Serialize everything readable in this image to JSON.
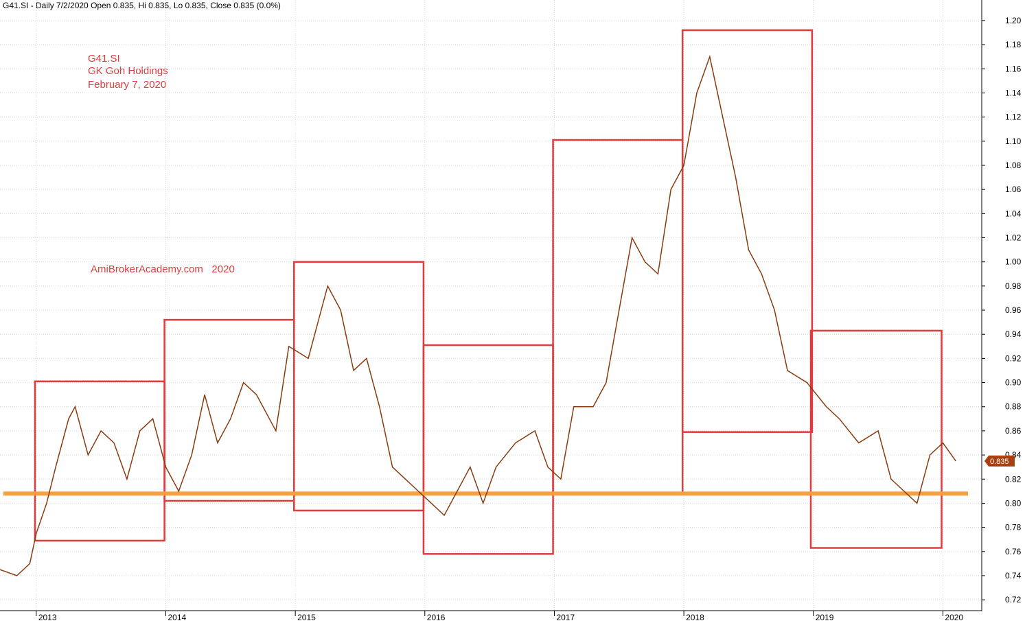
{
  "chart_data": {
    "type": "line",
    "title": "G41.SI - Daily 7/2/2020 Open 0.835, Hi 0.835, Lo 0.835, Close 0.835 (0.0%)",
    "annotations": [
      "G41.SI",
      "GK Goh Holdings",
      "February 7, 2020"
    ],
    "watermark": "AmiBrokerAcademy.com   2020",
    "x": [
      2012.72,
      2012.85,
      2012.95,
      2013.0,
      2013.08,
      2013.15,
      2013.25,
      2013.3,
      2013.4,
      2013.5,
      2013.6,
      2013.7,
      2013.8,
      2013.9,
      2014.0,
      2014.1,
      2014.2,
      2014.3,
      2014.4,
      2014.5,
      2014.6,
      2014.7,
      2014.85,
      2014.95,
      2015.1,
      2015.25,
      2015.35,
      2015.45,
      2015.55,
      2015.65,
      2015.75,
      2015.85,
      2015.95,
      2016.05,
      2016.15,
      2016.25,
      2016.35,
      2016.45,
      2016.55,
      2016.7,
      2016.85,
      2016.95,
      2017.05,
      2017.15,
      2017.3,
      2017.4,
      2017.5,
      2017.6,
      2017.7,
      2017.8,
      2017.9,
      2018.0,
      2018.1,
      2018.2,
      2018.3,
      2018.4,
      2018.5,
      2018.6,
      2018.7,
      2018.8,
      2018.95,
      2019.1,
      2019.2,
      2019.35,
      2019.5,
      2019.6,
      2019.7,
      2019.8,
      2019.9,
      2020.0,
      2020.1
    ],
    "series": [
      {
        "color": "#8b3a0e",
        "values": [
          0.745,
          0.74,
          0.75,
          0.775,
          0.8,
          0.83,
          0.87,
          0.88,
          0.84,
          0.86,
          0.85,
          0.82,
          0.86,
          0.87,
          0.83,
          0.81,
          0.84,
          0.89,
          0.85,
          0.87,
          0.9,
          0.89,
          0.86,
          0.93,
          0.92,
          0.98,
          0.96,
          0.91,
          0.92,
          0.88,
          0.83,
          0.82,
          0.81,
          0.8,
          0.79,
          0.81,
          0.83,
          0.8,
          0.83,
          0.85,
          0.86,
          0.83,
          0.82,
          0.88,
          0.88,
          0.9,
          0.96,
          1.02,
          1.0,
          0.99,
          1.06,
          1.08,
          1.14,
          1.17,
          1.12,
          1.07,
          1.01,
          0.99,
          0.96,
          0.91,
          0.9,
          0.88,
          0.87,
          0.85,
          0.86,
          0.82,
          0.81,
          0.8,
          0.84,
          0.85,
          0.835
        ]
      }
    ],
    "last_value": 0.835,
    "boxes": [
      {
        "xlim": [
          2012.99,
          2013.99
        ],
        "ylim": [
          0.769,
          0.901
        ]
      },
      {
        "xlim": [
          2013.99,
          2014.99
        ],
        "ylim": [
          0.802,
          0.952
        ]
      },
      {
        "xlim": [
          2014.99,
          2015.99
        ],
        "ylim": [
          0.794,
          1.0
        ]
      },
      {
        "xlim": [
          2015.99,
          2016.99
        ],
        "ylim": [
          0.758,
          0.931
        ]
      },
      {
        "xlim": [
          2016.99,
          2017.99
        ],
        "ylim": [
          0.808,
          1.101
        ]
      },
      {
        "xlim": [
          2017.99,
          2018.99
        ],
        "ylim": [
          0.859,
          1.192
        ]
      },
      {
        "xlim": [
          2018.98,
          2019.99
        ],
        "ylim": [
          0.763,
          0.943
        ]
      }
    ],
    "box_color": "#e03c3c",
    "hline": 0.808,
    "hline_color": "#f7a040",
    "xlim": [
      2012.72,
      2020.3
    ],
    "xticks": [
      2013,
      2014,
      2015,
      2016,
      2017,
      2018,
      2019,
      2020
    ],
    "ylim": [
      0.711,
      1.217
    ],
    "yticks": [
      0.72,
      0.74,
      0.76,
      0.78,
      {
        "value": 0.8,
        "label": "0.80"
      },
      0.82,
      0.84,
      0.86,
      0.88,
      {
        "value": 0.9,
        "label": "0.90"
      },
      0.92,
      0.94,
      0.96,
      0.98,
      {
        "value": 1.0,
        "label": "1.00"
      },
      1.02,
      1.04,
      1.06,
      1.08,
      {
        "value": 1.1,
        "label": "1.10"
      },
      1.12,
      1.14,
      1.16,
      1.18,
      {
        "value": 1.2,
        "label": "1.20"
      }
    ],
    "grid": true
  }
}
